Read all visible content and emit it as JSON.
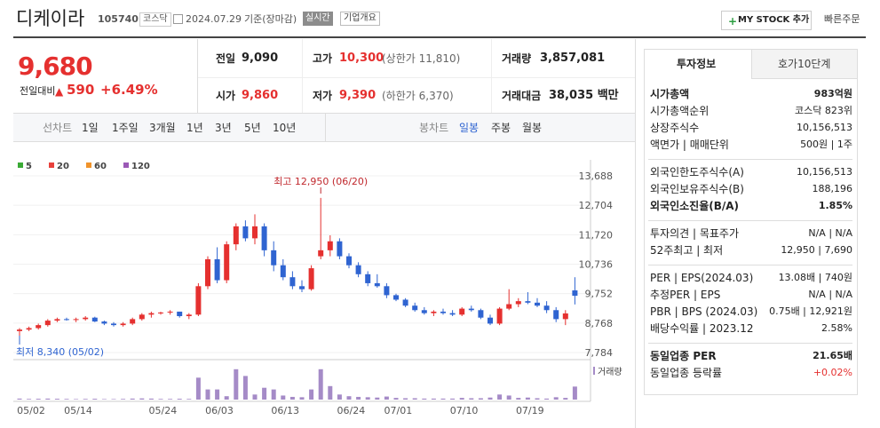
{
  "header": {
    "name": "디케이라",
    "code": "105740",
    "market": "코스닥",
    "date": "2024.07.29",
    "basis": "기준(장마감)",
    "realtime": "실시간",
    "company_info": "기업개요",
    "mystock": "MY STOCK 추가",
    "quick_order": "빠른주문"
  },
  "price": {
    "current": "9,680",
    "change_label": "전일대비",
    "change": "590",
    "change_pct": "+6.49%"
  },
  "summary": [
    [
      [
        "전일",
        "9,090",
        ""
      ],
      [
        "고가",
        "10,300",
        "(상한가 11,810)"
      ],
      [
        "거래량",
        "3,857,081",
        ""
      ]
    ],
    [
      [
        "시가",
        "9,860",
        ""
      ],
      [
        "저가",
        "9,390",
        "(하한가 6,370)"
      ],
      [
        "거래대금",
        "38,035 백만",
        ""
      ]
    ]
  ],
  "period_tabs": [
    "선차트",
    "1일",
    "1주일",
    "3개월",
    "1년",
    "3년",
    "5년",
    "10년"
  ],
  "candle_tabs": [
    "봉차트",
    "일봉",
    "주봉",
    "월봉"
  ],
  "chart_data": {
    "type": "candlestick",
    "high_note": "최고 12,950 (06/20)",
    "low_note": "최저 8,340 (05/02)",
    "volume_label": "거래량",
    "legend": [
      {
        "name": "5",
        "color": "#3aaa35"
      },
      {
        "name": "20",
        "color": "#e8413c"
      },
      {
        "name": "60",
        "color": "#f0932b"
      },
      {
        "name": "120",
        "color": "#9b59b6"
      }
    ],
    "categories": [
      "05/02",
      null,
      null,
      null,
      null,
      "05/14",
      null,
      null,
      null,
      null,
      null,
      null,
      null,
      null,
      "05/24",
      null,
      null,
      null,
      null,
      null,
      "06/03",
      null,
      null,
      null,
      null,
      null,
      null,
      "06/13",
      null,
      null,
      null,
      null,
      null,
      null,
      "06/24",
      null,
      null,
      null,
      null,
      "07/01",
      null,
      null,
      null,
      null,
      null,
      null,
      "07/10",
      null,
      null,
      null,
      null,
      null,
      null,
      "07/19",
      null,
      null,
      null,
      null,
      null,
      null
    ],
    "open": [
      8500,
      8550,
      8600,
      8700,
      8850,
      8900,
      8870,
      8900,
      8950,
      8820,
      8750,
      8700,
      8750,
      8900,
      9050,
      9100,
      9120,
      9150,
      9000,
      9050,
      10000,
      10900,
      10200,
      11400,
      12000,
      11600,
      12000,
      11200,
      10700,
      10300,
      10000,
      9900,
      11000,
      11200,
      11500,
      11000,
      10700,
      10400,
      10100,
      10000,
      9700,
      9550,
      9350,
      9200,
      9100,
      9150,
      9100,
      9050,
      9250,
      9200,
      8950,
      8750,
      9250,
      9400,
      9500,
      9450,
      9350,
      9200,
      8900,
      9860
    ],
    "high": [
      8600,
      8650,
      8750,
      8900,
      8950,
      8950,
      8950,
      9000,
      8980,
      8850,
      8800,
      8800,
      8950,
      9100,
      9150,
      9150,
      9200,
      9150,
      9100,
      10100,
      11000,
      11300,
      11500,
      12100,
      12200,
      12400,
      12100,
      11500,
      10900,
      10500,
      10200,
      10700,
      12950,
      11700,
      11600,
      11100,
      10800,
      10500,
      10400,
      10100,
      9750,
      9600,
      9450,
      9300,
      9200,
      9250,
      9200,
      9300,
      9350,
      9250,
      9050,
      9300,
      9900,
      9600,
      9800,
      9600,
      9500,
      9300,
      9200,
      10300
    ],
    "low": [
      8340,
      8500,
      8550,
      8650,
      8800,
      8850,
      8800,
      8850,
      8800,
      8700,
      8650,
      8650,
      8700,
      8850,
      8950,
      9050,
      9050,
      8950,
      8900,
      9000,
      9900,
      10100,
      10100,
      11200,
      11500,
      11400,
      11000,
      10500,
      10200,
      9900,
      9800,
      9850,
      10900,
      11000,
      10900,
      10600,
      10300,
      10000,
      9950,
      9600,
      9500,
      9300,
      9150,
      9050,
      9000,
      9050,
      9000,
      9000,
      9150,
      8900,
      8700,
      8700,
      9200,
      9300,
      9400,
      9300,
      9100,
      8800,
      8700,
      9390
    ],
    "close": [
      8550,
      8600,
      8700,
      8850,
      8900,
      8870,
      8900,
      8950,
      8820,
      8750,
      8700,
      8750,
      8900,
      9050,
      9100,
      9120,
      9150,
      9000,
      9050,
      10000,
      10900,
      10200,
      11400,
      12000,
      11600,
      12000,
      11200,
      10700,
      10300,
      10000,
      9900,
      10600,
      11200,
      11500,
      11000,
      10700,
      10400,
      10100,
      10000,
      9700,
      9550,
      9350,
      9200,
      9100,
      9150,
      9100,
      9050,
      9250,
      9200,
      8950,
      8750,
      9250,
      9400,
      9500,
      9450,
      9350,
      9200,
      8900,
      9090,
      9680
    ],
    "volume": [
      300,
      200,
      250,
      300,
      250,
      200,
      150,
      200,
      250,
      150,
      150,
      200,
      300,
      350,
      300,
      200,
      200,
      250,
      200,
      6500,
      3000,
      3000,
      1000,
      9000,
      7000,
      1500,
      3500,
      3000,
      1200,
      800,
      700,
      3000,
      9000,
      4000,
      1500,
      1000,
      800,
      700,
      600,
      900,
      500,
      400,
      400,
      300,
      300,
      300,
      300,
      500,
      400,
      400,
      600,
      1500,
      1200,
      500,
      600,
      400,
      300,
      700,
      500,
      3857
    ],
    "ylim": [
      7784,
      13688
    ],
    "yticks": [
      {
        "value": 7784,
        "label": "7,784"
      },
      {
        "value": 8768,
        "label": "8,768"
      },
      {
        "value": 9752,
        "label": "9,752"
      },
      {
        "value": 10736,
        "label": "10,736"
      },
      {
        "value": 11720,
        "label": "11,720"
      },
      {
        "value": 12704,
        "label": "12,704"
      },
      {
        "value": 13688,
        "label": "13,688"
      }
    ],
    "volume_ylim": [
      0,
      10000
    ],
    "up_color": "#e5302f",
    "down_color": "#2f64d1"
  },
  "info": {
    "tabs": [
      "투자정보",
      "호가10단계"
    ],
    "sections": [
      [
        [
          "시가총액",
          "983억원"
        ],
        [
          "시가총액순위",
          "코스닥 823위"
        ],
        [
          "상장주식수",
          "10,156,513"
        ],
        [
          "액면가 | 매매단위",
          "500원 | 1주"
        ]
      ],
      [
        [
          "외국인한도주식수(A)",
          "10,156,513"
        ],
        [
          "외국인보유주식수(B)",
          "188,196"
        ],
        [
          "외국인소진율(B/A)",
          "1.85%"
        ]
      ],
      [
        [
          "투자의견 | 목표주가",
          "N/A | N/A"
        ],
        [
          "52주최고 | 최저",
          "12,950 | 7,690"
        ]
      ],
      [
        [
          "PER | EPS(2024.03)",
          "13.08배 | 740원"
        ],
        [
          "추정PER | EPS",
          "N/A | N/A"
        ],
        [
          "PBR | BPS (2024.03)",
          "0.75배 | 12,921원"
        ],
        [
          "배당수익률 | 2023.12",
          "2.58%"
        ]
      ],
      [
        [
          "동일업종 PER",
          "21.65배"
        ],
        [
          "동일업종 등락률",
          "+0.02%"
        ]
      ]
    ]
  }
}
